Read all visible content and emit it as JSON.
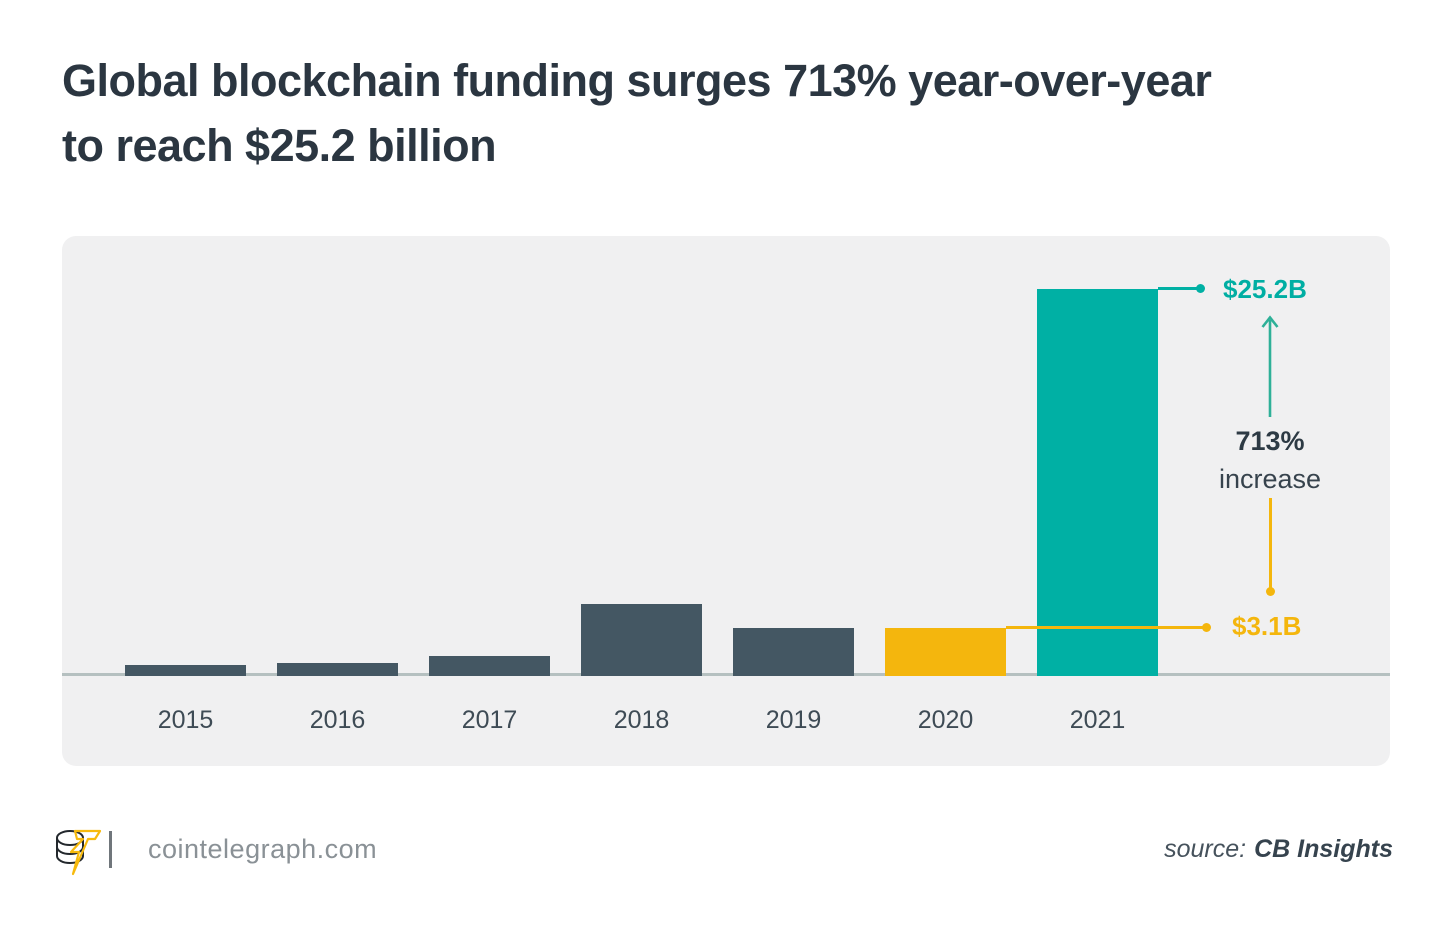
{
  "title": {
    "line1": "Global blockchain funding surges 713% year-over-year",
    "line2": "to reach $25.2 billion"
  },
  "chart_data": {
    "type": "bar",
    "title": "Global blockchain funding surges 713% year-over-year to reach $25.2 billion",
    "categories": [
      "2015",
      "2016",
      "2017",
      "2018",
      "2019",
      "2020",
      "2021"
    ],
    "values": [
      0.7,
      0.85,
      1.3,
      4.7,
      3.1,
      3.1,
      25.2
    ],
    "unit": "USD billions",
    "xlabel": "",
    "ylabel": "",
    "ylim": [
      0,
      26
    ],
    "grid": false,
    "legend": false,
    "bar_colors": [
      "#445763",
      "#445763",
      "#445763",
      "#445763",
      "#445763",
      "#F4B60D",
      "#00B0A4"
    ],
    "callouts": {
      "top": {
        "label": "$25.2B",
        "value": 25.2,
        "year": "2021",
        "color": "#00AEA3"
      },
      "bottom": {
        "label": "$3.1B",
        "value": 3.1,
        "year": "2020",
        "color": "#F4B60D"
      },
      "change": {
        "line1": "713%",
        "line2": "increase"
      }
    }
  },
  "footer": {
    "site": "cointelegraph.com",
    "source_prefix": "source:",
    "source_name": "CB Insights"
  },
  "colors": {
    "bar_default": "#445763",
    "bar_2020": "#F4B60D",
    "bar_2021": "#00B0A4",
    "panel_background": "#F0F0F1",
    "baseline": "#B5C0C0",
    "title_text": "#2B3641",
    "arrow_teal": "#2EB098"
  },
  "icons": {
    "logo": "cointelegraph-coin-stack-lightning",
    "arrow_up": "increase-arrow",
    "dots": "callout-endpoint-dot"
  }
}
